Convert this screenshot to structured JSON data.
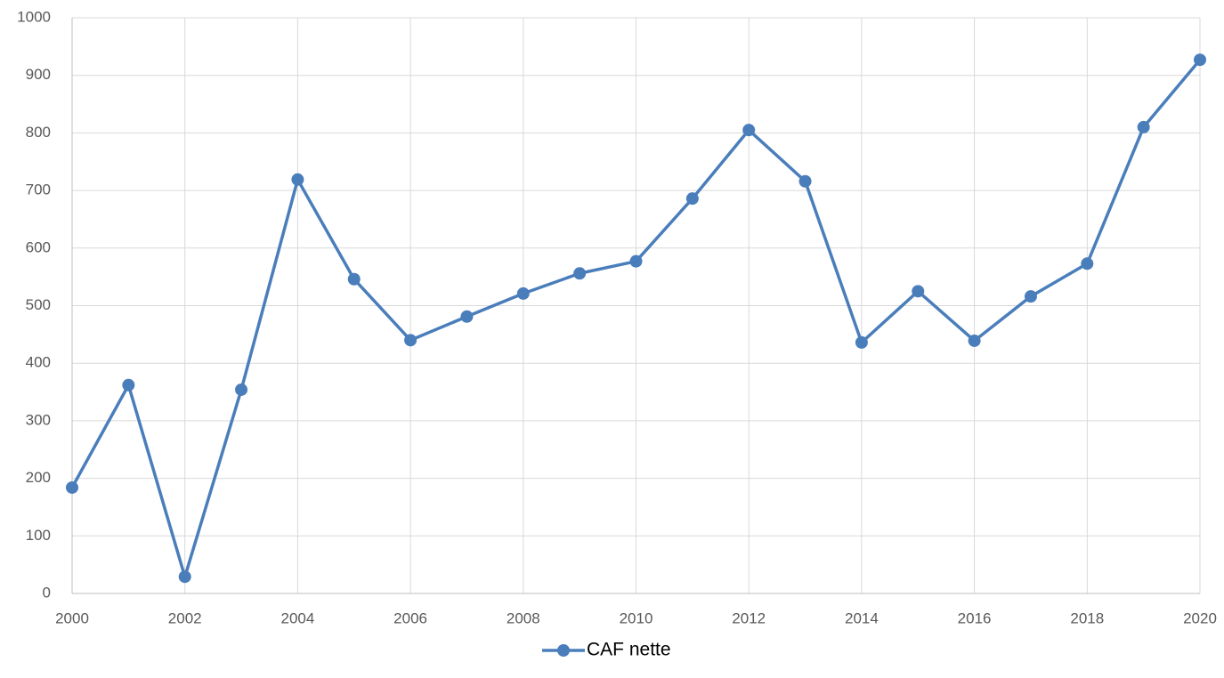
{
  "chart_data": {
    "type": "line",
    "x": [
      2000,
      2001,
      2002,
      2003,
      2004,
      2005,
      2006,
      2007,
      2008,
      2009,
      2010,
      2011,
      2012,
      2013,
      2014,
      2015,
      2016,
      2017,
      2018,
      2019,
      2020
    ],
    "series": [
      {
        "name": "CAF nette",
        "color": "#4a7ebb",
        "values": [
          184,
          362,
          29,
          354,
          719,
          546,
          440,
          481,
          521,
          556,
          577,
          686,
          805,
          716,
          436,
          525,
          439,
          516,
          573,
          810,
          927
        ]
      }
    ],
    "xlim": [
      2000,
      2020
    ],
    "xticks": [
      2000,
      2002,
      2004,
      2006,
      2008,
      2010,
      2012,
      2014,
      2016,
      2018,
      2020
    ],
    "ylim": [
      0,
      1000
    ],
    "yticks": [
      0,
      100,
      200,
      300,
      400,
      500,
      600,
      700,
      800,
      900,
      1000
    ],
    "grid": true,
    "legend": "bottom"
  }
}
